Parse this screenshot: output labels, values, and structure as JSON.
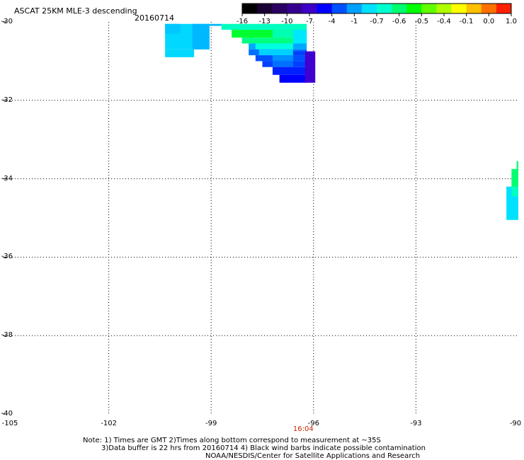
{
  "header": {
    "title": "ASCAT 25KM MLE-3 descending",
    "date": "20160714"
  },
  "colorbar": {
    "labels": [
      "-16",
      "-13",
      "-10",
      "-7",
      "-4",
      "-1",
      "-0.7",
      "-0.6",
      "-0.5",
      "-0.4",
      "-0.1",
      "0.0",
      "1.0"
    ],
    "colors": [
      "#000000",
      "#1a0033",
      "#2a0060",
      "#36008e",
      "#3e00c8",
      "#0000ff",
      "#0050ff",
      "#00a0ff",
      "#00e0ff",
      "#00ffd0",
      "#00ff70",
      "#00ff00",
      "#60ff00",
      "#b0ff00",
      "#ffff00",
      "#ffc000",
      "#ff7000",
      "#ff2000"
    ]
  },
  "map": {
    "lon_range": [
      -105,
      -90
    ],
    "lat_range": [
      -40,
      -30
    ],
    "y_axis_labels": [
      "-30",
      "-32",
      "-34",
      "-36",
      "-38",
      "-40"
    ],
    "x_axis_labels": [
      "-105",
      "-102",
      "-99",
      "-96",
      "-93",
      "-90"
    ],
    "time_label": "16:04",
    "time_lon": -96.3,
    "swath_cells": [
      {
        "lon0": -100.35,
        "lon1": -99.05,
        "lat0": -30.05,
        "lat1": -30.7,
        "color": "#00d8ff"
      },
      {
        "lon0": -100.35,
        "lon1": -99.5,
        "lat0": -30.7,
        "lat1": -30.9,
        "color": "#00d8ff"
      },
      {
        "lon0": -99.55,
        "lon1": -99.05,
        "lat0": -30.05,
        "lat1": -30.7,
        "color": "#00b8ff"
      },
      {
        "lon0": -100.35,
        "lon1": -99.9,
        "lat0": -30.05,
        "lat1": -30.3,
        "color": "#00c8ff"
      },
      {
        "lon0": -99.05,
        "lon1": -98.7,
        "lat0": -30.05,
        "lat1": -30.1,
        "color": "#00b8ff"
      },
      {
        "lon0": -98.7,
        "lon1": -96.2,
        "lat0": -30.05,
        "lat1": -30.2,
        "color": "#00ffc0"
      },
      {
        "lon0": -98.4,
        "lon1": -96.2,
        "lat0": -30.2,
        "lat1": -30.4,
        "color": "#00ff30"
      },
      {
        "lon0": -98.1,
        "lon1": -96.2,
        "lat0": -30.4,
        "lat1": -30.55,
        "color": "#00ff80"
      },
      {
        "lon0": -97.2,
        "lon1": -96.6,
        "lat0": -30.2,
        "lat1": -30.4,
        "color": "#00ffb0"
      },
      {
        "lon0": -96.6,
        "lon1": -96.2,
        "lat0": -30.2,
        "lat1": -30.55,
        "color": "#00e8ff"
      },
      {
        "lon0": -97.9,
        "lon1": -96.2,
        "lat0": -30.55,
        "lat1": -30.7,
        "color": "#00a8ff"
      },
      {
        "lon0": -97.7,
        "lon1": -96.6,
        "lat0": -30.55,
        "lat1": -30.7,
        "color": "#00ffe0"
      },
      {
        "lon0": -97.9,
        "lon1": -96.2,
        "lat0": -30.7,
        "lat1": -30.85,
        "color": "#0070ff"
      },
      {
        "lon0": -97.6,
        "lon1": -96.6,
        "lat0": -30.7,
        "lat1": -30.85,
        "color": "#00d0ff"
      },
      {
        "lon0": -97.7,
        "lon1": -96.2,
        "lat0": -30.85,
        "lat1": -31.0,
        "color": "#0050ff"
      },
      {
        "lon0": -97.2,
        "lon1": -96.6,
        "lat0": -30.85,
        "lat1": -31.0,
        "color": "#0090ff"
      },
      {
        "lon0": -97.5,
        "lon1": -96.2,
        "lat0": -31.0,
        "lat1": -31.15,
        "color": "#0040ff"
      },
      {
        "lon0": -97.2,
        "lon1": -96.6,
        "lat0": -31.0,
        "lat1": -31.15,
        "color": "#0070ff"
      },
      {
        "lon0": -97.2,
        "lon1": -96.2,
        "lat0": -31.15,
        "lat1": -31.35,
        "color": "#0020ff"
      },
      {
        "lon0": -97.0,
        "lon1": -96.2,
        "lat0": -31.35,
        "lat1": -31.55,
        "color": "#0000ff"
      },
      {
        "lon0": -96.25,
        "lon1": -95.95,
        "lat0": -30.75,
        "lat1": -31.55,
        "color": "#4000d0"
      },
      {
        "lon0": -96.6,
        "lon1": -96.25,
        "lat0": -30.75,
        "lat1": -30.85,
        "color": "#0040ff"
      },
      {
        "lon0": -90.2,
        "lon1": -90.0,
        "lat0": -33.75,
        "lat1": -34.45,
        "color": "#00ff70"
      },
      {
        "lon0": -90.05,
        "lon1": -90.0,
        "lat0": -33.55,
        "lat1": -33.75,
        "color": "#00ff70"
      },
      {
        "lon0": -90.35,
        "lon1": -90.0,
        "lat0": -34.2,
        "lat1": -35.05,
        "color": "#00e0ff"
      },
      {
        "lon0": -90.2,
        "lon1": -90.0,
        "lat0": -34.2,
        "lat1": -34.45,
        "color": "#00ffc0"
      }
    ]
  },
  "footer": {
    "note_line1": "Note: 1) Times are GMT 2)Times along bottom correspond to measurement at ~35S",
    "note_line2": "3)Data buffer is 22 hrs from 20160714 4) Black wind barbs indicate possible contamination",
    "note_line3": "NOAA/NESDIS/Center for Satellite Applications and Research"
  }
}
